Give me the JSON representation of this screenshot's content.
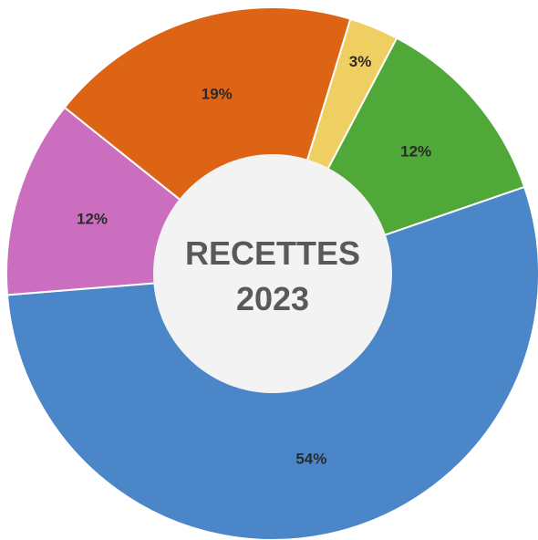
{
  "chart_data": {
    "type": "pie",
    "title": "",
    "center_label": [
      "RECETTES",
      "2023"
    ],
    "slices": [
      {
        "value": 54,
        "label": "54%",
        "color": "#4a86c8"
      },
      {
        "value": 12,
        "label": "12%",
        "color": "#cc6ec0"
      },
      {
        "value": 19,
        "label": "19%",
        "color": "#dd6414"
      },
      {
        "value": 3,
        "label": "3%",
        "color": "#f0cf62"
      },
      {
        "value": 12,
        "label": "12%",
        "color": "#4fa838"
      }
    ],
    "legend": "none",
    "donut": true
  }
}
